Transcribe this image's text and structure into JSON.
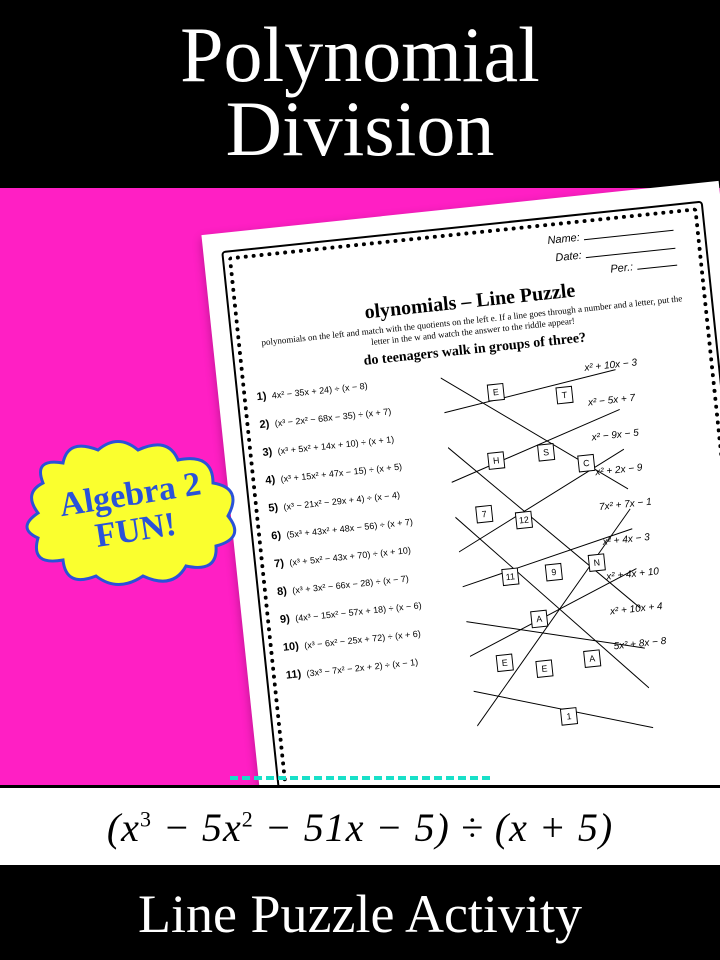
{
  "colors": {
    "background": "#ff1fc4",
    "banner_bg": "#000000",
    "banner_text": "#ffffff",
    "burst_fill": "#faff2e",
    "burst_stroke": "#2a52d8",
    "burst_text": "#2a52d8",
    "equation_bg": "#ffffff",
    "accent_dash": "#18e0c8"
  },
  "top_banner": {
    "line1": "Polynomial",
    "line2": "Division",
    "font_family": "cursive",
    "font_size": 78
  },
  "burst": {
    "line1": "Algebra 2",
    "line2": "FUN!",
    "rotation_deg": -9,
    "font_size": 34
  },
  "worksheet": {
    "rotation_deg": -6,
    "header": {
      "name_label": "Name:",
      "date_label": "Date:",
      "per_label": "Per.:"
    },
    "title": "olynomials – Line Puzzle",
    "instructions": "polynomials on the left and match with the quotients on the left e. If a line goes through a number and a letter, put the letter in the w and watch the answer to the riddle appear!",
    "riddle": "do teenagers walk in groups of three?",
    "problems": [
      {
        "n": "1)",
        "expr": "4x² − 35x + 24) ÷ (x − 8)"
      },
      {
        "n": "2)",
        "expr": "(x³ − 2x² − 68x − 35) ÷ (x + 7)"
      },
      {
        "n": "3)",
        "expr": "(x³ + 5x² + 14x + 10) ÷ (x + 1)"
      },
      {
        "n": "4)",
        "expr": "(x³ + 15x² + 47x − 15) ÷ (x + 5)"
      },
      {
        "n": "5)",
        "expr": "(x³ − 21x² − 29x + 4) ÷ (x − 4)"
      },
      {
        "n": "6)",
        "expr": "(5x³ + 43x² + 48x − 56) ÷ (x + 7)"
      },
      {
        "n": "7)",
        "expr": "(x³ + 5x² − 43x + 70) ÷ (x + 10)"
      },
      {
        "n": "8)",
        "expr": "(x³ + 3x² − 66x − 28) ÷ (x − 7)"
      },
      {
        "n": "9)",
        "expr": "(4x³ − 15x² − 57x + 18) ÷ (x − 6)"
      },
      {
        "n": "10)",
        "expr": "(x³ − 6x² − 25x + 72) ÷ (x + 6)"
      },
      {
        "n": "11)",
        "expr": "(3x³ − 7x² − 2x + 2) ÷ (x − 1)"
      }
    ],
    "answers": [
      "x² + 10x − 3",
      "x² − 5x + 7",
      "x² − 9x − 5",
      "x² + 2x − 9",
      "7x² + 7x − 1",
      "x² + 4x − 3",
      "x² + 4x + 10",
      "x² + 10x + 4",
      "5x² + 8x − 8"
    ],
    "node_labels": [
      "E",
      "T",
      "H",
      "S",
      "C",
      "7",
      "12",
      "11",
      "9",
      "N",
      "A",
      "E",
      "E",
      "A",
      "1"
    ]
  },
  "equation": {
    "text_html": "(𝑥³ − 5𝑥² − 51𝑥 − 5) ÷ (𝑥 + 5)",
    "font_size": 40
  },
  "bottom_banner": {
    "text": "Line Puzzle Activity",
    "font_size": 54
  }
}
